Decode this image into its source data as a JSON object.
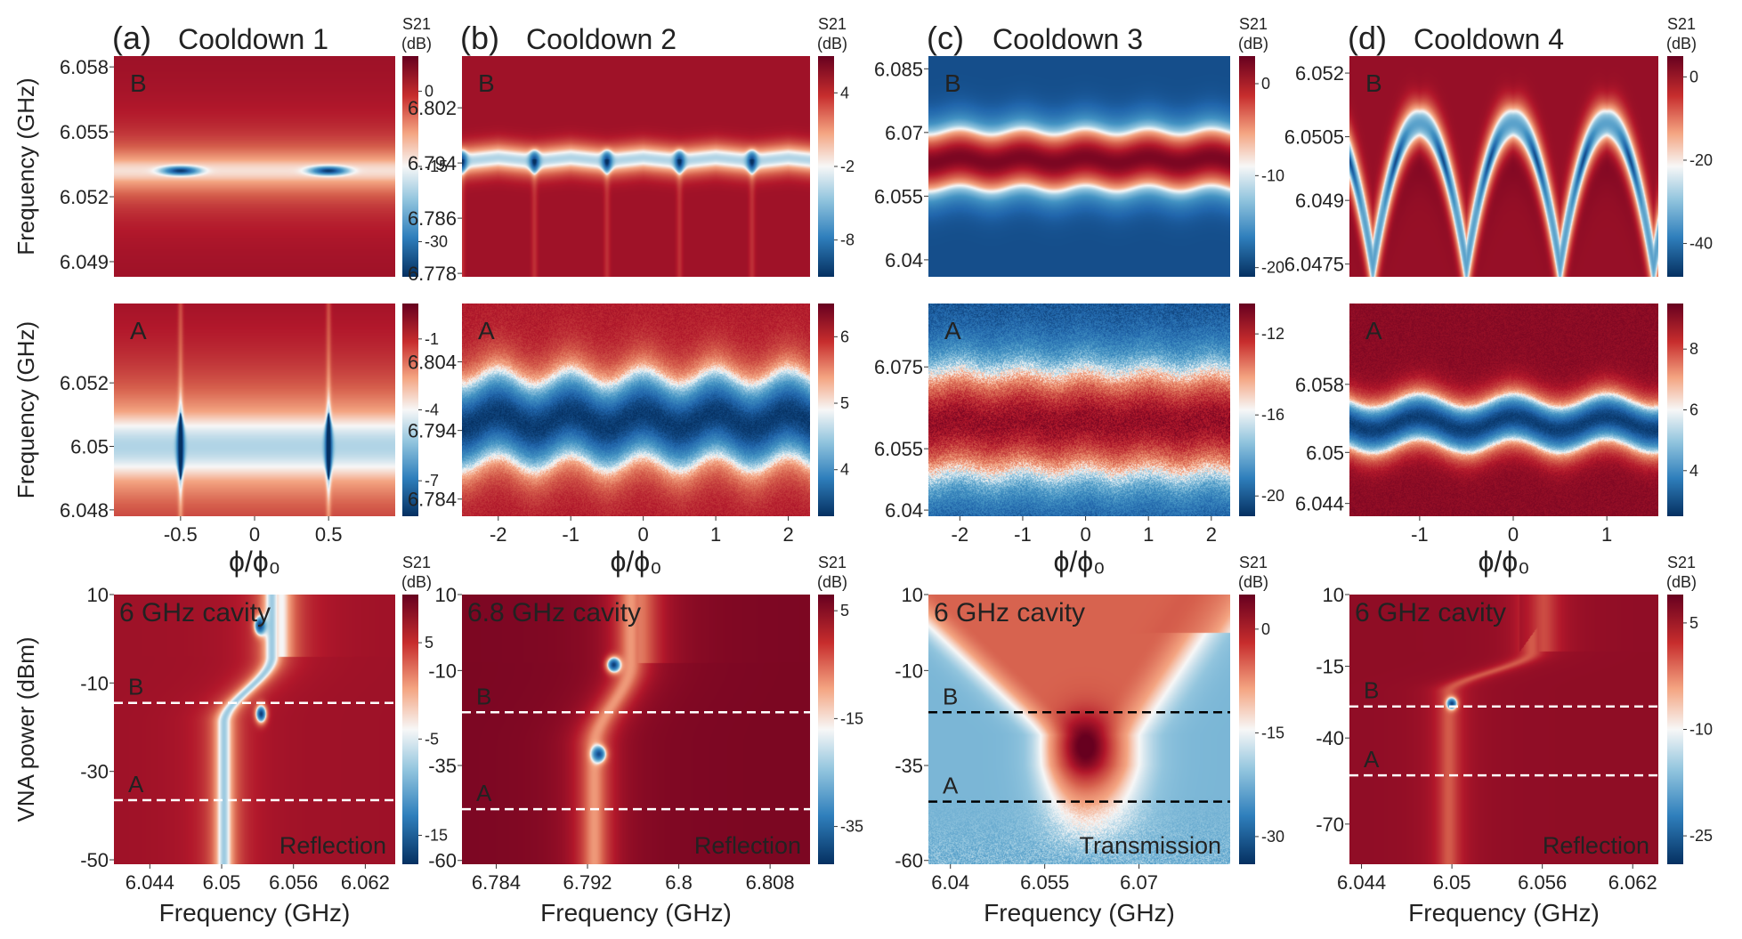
{
  "colors": {
    "deep_red": "#67001f",
    "red": "#c72d2d",
    "light": "#f7f7f7",
    "blue": "#2f7fbc",
    "deep_blue": "#053061",
    "dashed_white": "#ffffff",
    "dashed_black": "#000000"
  },
  "chart_data": [
    {
      "id": "a-top",
      "type": "heatmap",
      "panel_label": "(a)",
      "title": "Cooldown 1",
      "inset_label": "B",
      "ylabel": "Frequency (GHz)",
      "xlabel": "",
      "ytick_labels": [
        "6.058",
        "6.055",
        "6.052",
        "6.049"
      ],
      "yticks": [
        6.058,
        6.055,
        6.052,
        6.049
      ],
      "ylim": [
        6.0483,
        6.0585
      ],
      "xlim": [
        -0.95,
        0.95
      ],
      "xtick_labels": [],
      "xticks": [],
      "colorbar_title": [
        "S21",
        "(dB)"
      ],
      "cbar_tick_labels": [
        "0",
        "-15",
        "-30"
      ],
      "cbar_ticks": [
        0,
        -15,
        -30
      ],
      "clim": [
        -37,
        7
      ],
      "features": {
        "kind": "flat_band",
        "center": 6.0532,
        "width": 0.0012,
        "peak_db": -14,
        "base_db": 3,
        "dips": {
          "x": [
            -0.5,
            0.5
          ],
          "half_width": 0.075,
          "db": -36
        }
      }
    },
    {
      "id": "a-mid",
      "type": "heatmap",
      "panel_label": "",
      "title": "",
      "inset_label": "A",
      "ylabel": "Frequency (GHz)",
      "xlabel": "ϕ/ϕ₀",
      "ytick_labels": [
        "6.052",
        "6.05",
        "6.048"
      ],
      "yticks": [
        6.052,
        6.05,
        6.048
      ],
      "ylim": [
        6.0478,
        6.0545
      ],
      "xlim": [
        -0.95,
        0.95
      ],
      "xtick_labels": [
        "-0.5",
        "0",
        "0.5"
      ],
      "xticks": [
        -0.5,
        0,
        0.5
      ],
      "colorbar_title": [],
      "cbar_tick_labels": [
        "-1",
        "-4",
        "-7"
      ],
      "cbar_ticks": [
        -1,
        -4,
        -7
      ],
      "clim": [
        -8.5,
        0.5
      ],
      "features": {
        "kind": "flat_band",
        "center": 6.05,
        "width": 0.0018,
        "peak_db": -4.5,
        "base_db": 0,
        "spindles": {
          "x": [
            -0.5,
            0.5
          ],
          "half_height": 0.0011,
          "half_width": 0.03,
          "db": -8.5
        }
      }
    },
    {
      "id": "b-top",
      "type": "heatmap",
      "panel_label": "(b)",
      "title": "Cooldown 2",
      "inset_label": "B",
      "ylabel": "",
      "xlabel": "",
      "ytick_labels": [
        "6.802",
        "6.794",
        "6.786",
        "6.778"
      ],
      "yticks": [
        6.802,
        6.794,
        6.786,
        6.778
      ],
      "ylim": [
        6.7775,
        6.8095
      ],
      "xlim": [
        -2.5,
        2.3
      ],
      "xtick_labels": [],
      "xticks": [],
      "colorbar_title": [
        "S21",
        "(dB)"
      ],
      "cbar_tick_labels": [
        "4",
        "-2",
        "-8"
      ],
      "cbar_ticks": [
        4,
        -2,
        -8
      ],
      "clim": [
        -11,
        7
      ],
      "features": {
        "kind": "periodic_edge",
        "center": 6.7945,
        "amp": 0.0028,
        "width": 0.0016,
        "peak_db": -3,
        "base_db": 5
      }
    },
    {
      "id": "b-mid",
      "type": "heatmap",
      "panel_label": "",
      "title": "",
      "inset_label": "A",
      "ylabel": "",
      "xlabel": "ϕ/ϕ₀",
      "ytick_labels": [
        "6.804",
        "6.794",
        "6.784"
      ],
      "yticks": [
        6.804,
        6.794,
        6.784
      ],
      "ylim": [
        6.7815,
        6.8125
      ],
      "xlim": [
        -2.5,
        2.3
      ],
      "xtick_labels": [
        "-2",
        "-1",
        "0",
        "1",
        "2"
      ],
      "xticks": [
        -2,
        -1,
        0,
        1,
        2
      ],
      "colorbar_title": [],
      "cbar_tick_labels": [
        "6",
        "5",
        "4"
      ],
      "cbar_ticks": [
        6,
        5,
        4
      ],
      "clim": [
        3.3,
        6.5
      ],
      "features": {
        "kind": "periodic_band",
        "center": 6.7955,
        "amp": 0.0011,
        "width": 0.0048,
        "peak_db": 3.4,
        "base_db": 6.0,
        "noise": 0.12
      }
    },
    {
      "id": "c-top",
      "type": "heatmap",
      "panel_label": "(c)",
      "title": "Cooldown 3",
      "inset_label": "B",
      "ylabel": "",
      "xlabel": "",
      "ytick_labels": [
        "6.085",
        "6.07",
        "6.055",
        "6.04"
      ],
      "yticks": [
        6.085,
        6.07,
        6.055,
        6.04
      ],
      "ylim": [
        6.036,
        6.088
      ],
      "xlim": [
        -2.5,
        2.3
      ],
      "xtick_labels": [],
      "xticks": [],
      "colorbar_title": [
        "S21",
        "(dB)"
      ],
      "cbar_tick_labels": [
        "0",
        "-10",
        "-20"
      ],
      "cbar_ticks": [
        0,
        -10,
        -20
      ],
      "clim": [
        -21,
        3
      ],
      "features": {
        "kind": "transmission_band",
        "center": 6.0635,
        "amp": 0.0007,
        "width": 0.0055,
        "peak_db": 2,
        "base_db": -19
      }
    },
    {
      "id": "c-mid",
      "type": "heatmap",
      "panel_label": "",
      "title": "",
      "inset_label": "A",
      "ylabel": "",
      "xlabel": "ϕ/ϕ₀",
      "ytick_labels": [
        "6.075",
        "6.055",
        "6.04"
      ],
      "yticks": [
        6.075,
        6.055,
        6.04
      ],
      "ylim": [
        6.0385,
        6.0905
      ],
      "xlim": [
        -2.5,
        2.3
      ],
      "xtick_labels": [
        "-2",
        "-1",
        "0",
        "1",
        "2"
      ],
      "xticks": [
        -2,
        -1,
        0,
        1,
        2
      ],
      "colorbar_title": [],
      "cbar_tick_labels": [
        "-12",
        "-16",
        "-20"
      ],
      "cbar_ticks": [
        -12,
        -16,
        -20
      ],
      "clim": [
        -21,
        -10.5
      ],
      "features": {
        "kind": "transmission_band",
        "center": 6.0615,
        "amp": 0.0007,
        "width": 0.0105,
        "peak_db": -11.5,
        "base_db": -20,
        "noise": 0.8
      }
    },
    {
      "id": "d-top",
      "type": "heatmap",
      "panel_label": "(d)",
      "title": "Cooldown 4",
      "inset_label": "B",
      "ylabel": "",
      "xlabel": "",
      "ytick_labels": [
        "6.052",
        "6.0505",
        "6.049",
        "6.0475"
      ],
      "yticks": [
        6.052,
        6.0505,
        6.049,
        6.0475
      ],
      "ylim": [
        6.0472,
        6.0524
      ],
      "xlim": [
        -1.75,
        1.55
      ],
      "xtick_labels": [],
      "xticks": [],
      "colorbar_title": [
        "S21",
        "(dB)"
      ],
      "cbar_tick_labels": [
        "0",
        "-20",
        "-40"
      ],
      "cbar_ticks": [
        0,
        -20,
        -40
      ],
      "clim": [
        -48,
        5
      ],
      "features": {
        "kind": "arches",
        "top": 6.0508,
        "drop": 0.0034,
        "width": 0.00035,
        "peak_db": -32,
        "base_db": 0
      }
    },
    {
      "id": "d-mid",
      "type": "heatmap",
      "panel_label": "",
      "title": "",
      "inset_label": "A",
      "ylabel": "",
      "xlabel": "ϕ/ϕ₀",
      "ytick_labels": [
        "6.058",
        "6.05",
        "6.044"
      ],
      "yticks": [
        6.058,
        6.05,
        6.044
      ],
      "ylim": [
        6.0425,
        6.0675
      ],
      "xlim": [
        -1.75,
        1.55
      ],
      "xtick_labels": [
        "-1",
        "0",
        "1"
      ],
      "xticks": [
        -1,
        0,
        1
      ],
      "colorbar_title": [],
      "cbar_tick_labels": [
        "8",
        "6",
        "4"
      ],
      "cbar_ticks": [
        8,
        6,
        4
      ],
      "clim": [
        2.5,
        9.5
      ],
      "features": {
        "kind": "periodic_band",
        "center": 6.0534,
        "amp": 0.0008,
        "width": 0.0022,
        "peak_db": 2.8,
        "base_db": 9,
        "noise": 0.2
      }
    },
    {
      "id": "a-bot",
      "type": "heatmap",
      "panel_label": "",
      "title": "",
      "inset_label": "6 GHz cavity",
      "corner_label": "Reflection",
      "ylabel": "VNA power (dBm)",
      "xlabel": "Frequency (GHz)",
      "ytick_labels": [
        "10",
        "-10",
        "-30",
        "-50"
      ],
      "yticks": [
        10,
        -10,
        -30,
        -50
      ],
      "ylim": [
        -51,
        10
      ],
      "xlim": [
        6.041,
        6.0645
      ],
      "xtick_labels": [
        "6.044",
        "6.05",
        "6.056",
        "6.062"
      ],
      "xticks": [
        6.044,
        6.05,
        6.056,
        6.062
      ],
      "colorbar_title": [
        "S21",
        "(dB)"
      ],
      "cbar_tick_labels": [
        "5",
        "-5",
        "-15"
      ],
      "cbar_ticks": [
        5,
        -5,
        -15
      ],
      "clim": [
        -18,
        10
      ],
      "dashed_lines": [
        {
          "label": "B",
          "y": -14.5
        },
        {
          "label": "A",
          "y": -36.5
        }
      ],
      "features": {
        "kind": "power_reflection",
        "f_low": 6.0502,
        "f_high": 6.0542,
        "p_bend": -19,
        "p_cut": -4,
        "width": 0.0009,
        "peak_db": -6,
        "base_db": 7,
        "cut_start_freq": 6.0552,
        "cut_slope": 2.3,
        "dips": [
          {
            "f": 6.0532,
            "p": 3,
            "db": -17
          },
          {
            "f": 6.0533,
            "p": -17,
            "db": -17
          }
        ]
      }
    },
    {
      "id": "b-bot",
      "type": "heatmap",
      "panel_label": "",
      "title": "",
      "inset_label": "6.8 GHz cavity",
      "corner_label": "Reflection",
      "ylabel": "",
      "xlabel": "Frequency (GHz)",
      "ytick_labels": [
        "10",
        "-10",
        "-35",
        "-60"
      ],
      "yticks": [
        10,
        -10,
        -35,
        -60
      ],
      "ylim": [
        -61,
        10
      ],
      "xlim": [
        6.781,
        6.8115
      ],
      "xtick_labels": [
        "6.784",
        "6.792",
        "6.8",
        "6.808"
      ],
      "xticks": [
        6.784,
        6.792,
        6.8,
        6.808
      ],
      "colorbar_title": [
        "S21",
        "(dB)"
      ],
      "cbar_tick_labels": [
        "5",
        "-15",
        "-35"
      ],
      "cbar_ticks": [
        5,
        -15,
        -35
      ],
      "clim": [
        -42,
        8
      ],
      "dashed_lines": [
        {
          "label": "B",
          "y": -21
        },
        {
          "label": "A",
          "y": -46.5
        }
      ],
      "features": {
        "kind": "power_reflection",
        "f_low": 6.7926,
        "f_high": 6.7958,
        "p_bend": -30,
        "p_cut": -8,
        "width": 0.0012,
        "peak_db": -12,
        "base_db": 6,
        "cut_start_freq": 6.7965,
        "cut_slope": 1.4,
        "dips": [
          {
            "f": 6.7943,
            "p": -8.5,
            "db": -40
          },
          {
            "f": 6.793,
            "p": -32,
            "db": -38
          }
        ]
      }
    },
    {
      "id": "c-bot",
      "type": "heatmap",
      "panel_label": "",
      "title": "",
      "inset_label": "6 GHz cavity",
      "corner_label": "Transmission",
      "ylabel": "",
      "xlabel": "Frequency (GHz)",
      "ytick_labels": [
        "10",
        "-10",
        "-35",
        "-60"
      ],
      "yticks": [
        10,
        -10,
        -35,
        -60
      ],
      "ylim": [
        -61,
        10
      ],
      "xlim": [
        6.0365,
        6.0845
      ],
      "xtick_labels": [
        "6.04",
        "6.055",
        "6.07"
      ],
      "xticks": [
        6.04,
        6.055,
        6.07
      ],
      "colorbar_title": [
        "S21",
        "(dB)"
      ],
      "cbar_tick_labels": [
        "0",
        "-15",
        "-30"
      ],
      "cbar_ticks": [
        0,
        -15,
        -30
      ],
      "clim": [
        -34,
        5
      ],
      "dashed_lines": [
        {
          "label": "B",
          "y": -21
        },
        {
          "label": "A",
          "y": -44.5
        }
      ],
      "features": {
        "kind": "power_transmission",
        "f0": 6.0615,
        "p_tip": -27,
        "spread": 0.0016,
        "width": 0.0085,
        "peak_db": 3,
        "base_db": -19,
        "noise_below": -43
      }
    },
    {
      "id": "d-bot",
      "type": "heatmap",
      "panel_label": "",
      "title": "",
      "inset_label": "6 GHz cavity",
      "corner_label": "Reflection",
      "ylabel": "",
      "xlabel": "Frequency (GHz)",
      "ytick_labels": [
        "10",
        "-15",
        "-40",
        "-70"
      ],
      "yticks": [
        10,
        -15,
        -40,
        -70
      ],
      "ylim": [
        -84,
        10
      ],
      "xlim": [
        6.0432,
        6.0637
      ],
      "xtick_labels": [
        "6.044",
        "6.05",
        "6.056",
        "6.062"
      ],
      "xticks": [
        6.044,
        6.05,
        6.056,
        6.062
      ],
      "colorbar_title": [
        "S21",
        "(dB)"
      ],
      "cbar_tick_labels": [
        "5",
        "-10",
        "-25"
      ],
      "cbar_ticks": [
        5,
        -10,
        -25
      ],
      "clim": [
        -29,
        9
      ],
      "dashed_lines": [
        {
          "label": "B",
          "y": -29
        },
        {
          "label": "A",
          "y": -53
        }
      ],
      "features": {
        "kind": "power_reflection",
        "f_low": 6.0498,
        "f_high": 6.0553,
        "p_bend": -24,
        "p_cut": -10,
        "width": 0.0007,
        "peak_db": -2,
        "base_db": 6,
        "cut_start_freq": 6.0545,
        "cut_slope": 3.2,
        "dips": [
          {
            "f": 6.05,
            "p": -28,
            "db": -27
          }
        ]
      }
    }
  ]
}
